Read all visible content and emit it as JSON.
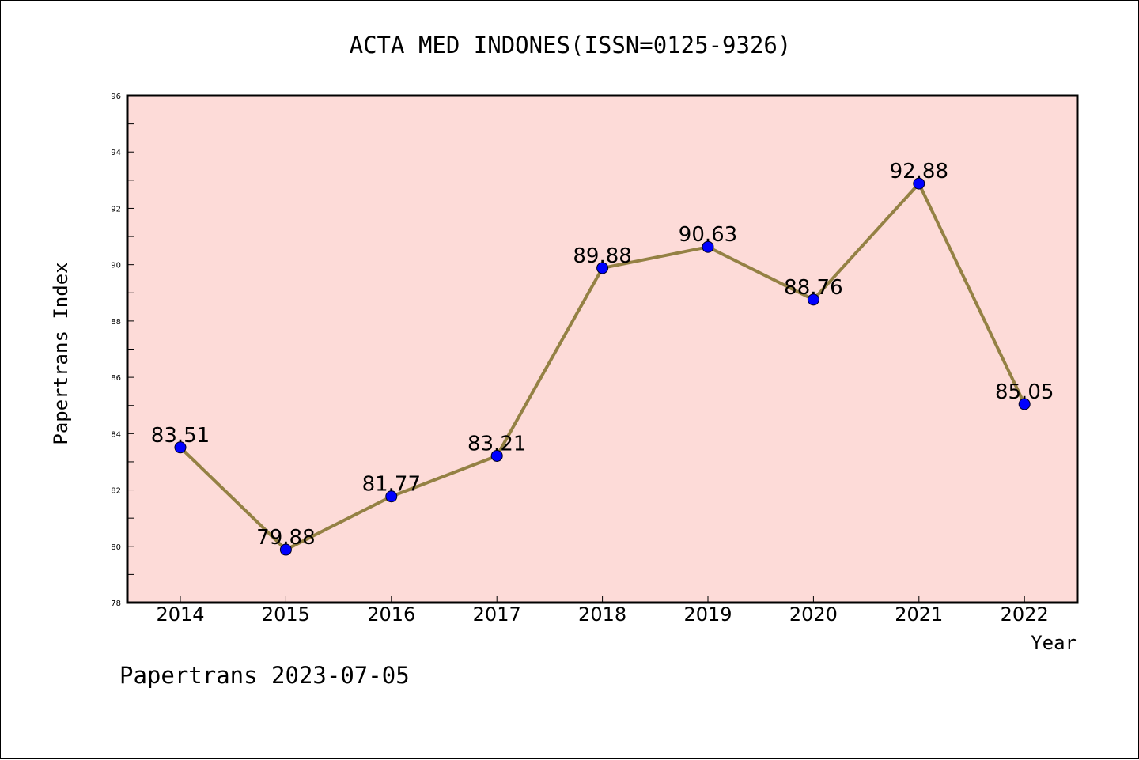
{
  "chart_data": {
    "type": "line",
    "title": "ACTA MED INDONES(ISSN=0125-9326)",
    "xlabel": "Year",
    "ylabel": "Papertrans Index",
    "footer": "Papertrans 2023-07-05",
    "x": [
      "2014",
      "2015",
      "2016",
      "2017",
      "2018",
      "2019",
      "2020",
      "2021",
      "2022"
    ],
    "series": [
      {
        "values": [
          83.51,
          79.88,
          81.77,
          83.21,
          89.88,
          90.63,
          88.76,
          92.88,
          85.05
        ],
        "labels": [
          "83.51",
          "79.88",
          "81.77",
          "83.21",
          "89.88",
          "90.63",
          "88.76",
          "92.88",
          "85.05"
        ]
      }
    ],
    "ylim": [
      78,
      96
    ],
    "yticks": [
      "78",
      "80",
      "82",
      "84",
      "86",
      "88",
      "90",
      "92",
      "94",
      "96"
    ],
    "grid": false,
    "colors": {
      "plot_background": "#fddbd8",
      "line": "#948144",
      "marker": "#0000ff"
    }
  }
}
